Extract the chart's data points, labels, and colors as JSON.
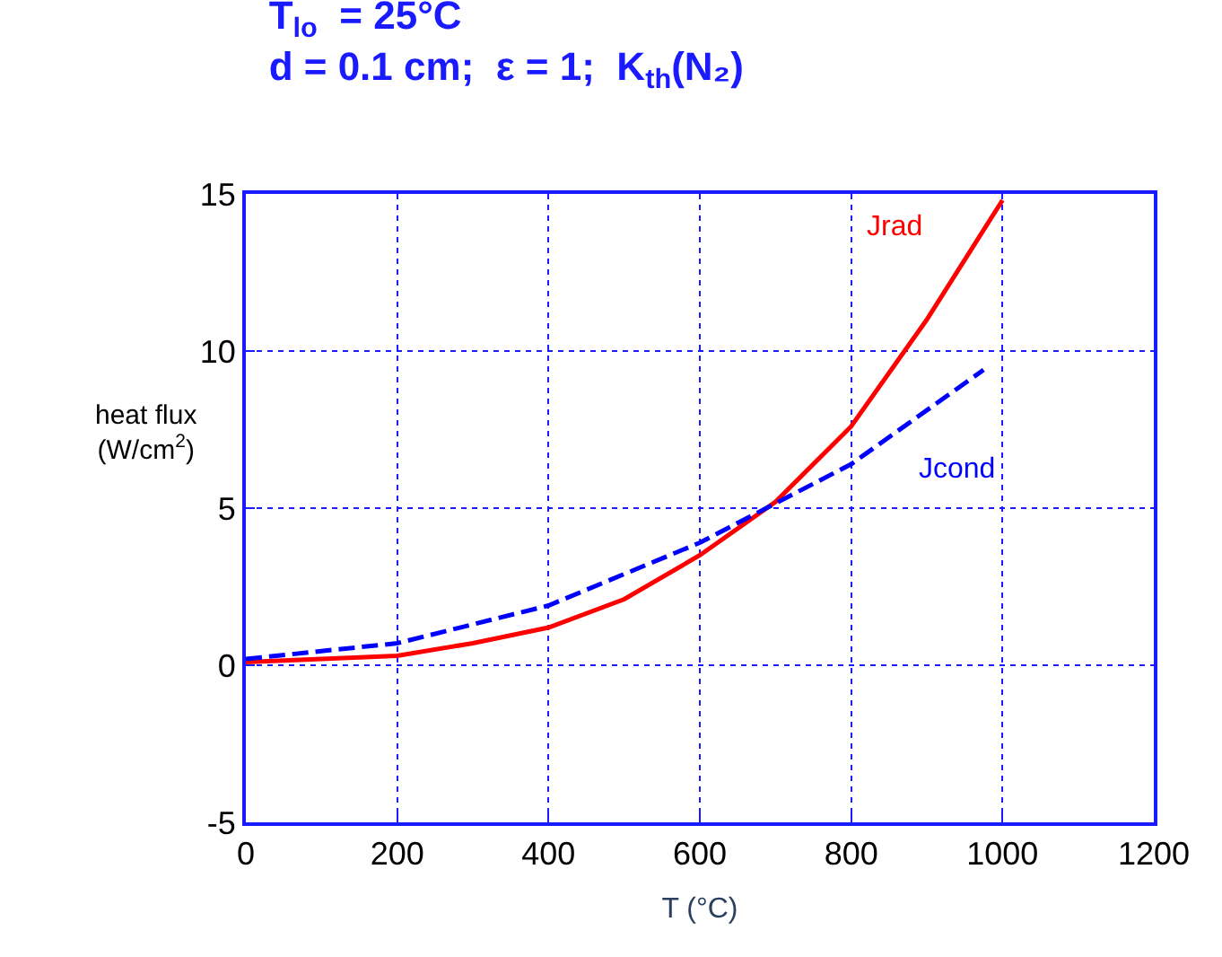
{
  "chart_data": {
    "type": "line",
    "title": "T$_{lo}$  = 25°C",
    "subtitle": "d = 0.1 cm;  ε = 1;  K$_{th}$(N₂)",
    "xlabel": "T (°C)",
    "ylabel": "heat flux (W/cm$^{2}$)",
    "xlim": [
      0,
      1200
    ],
    "xticks": [
      0,
      200,
      400,
      600,
      800,
      1000,
      1200
    ],
    "ylim": [
      -5,
      15
    ],
    "yticks": [
      -5,
      0,
      5,
      10,
      15
    ],
    "grid": true,
    "legend": false,
    "series": [
      {
        "name": "Jrad",
        "color": "#ff0000",
        "line_style": "solid",
        "x": [
          0,
          100,
          200,
          300,
          400,
          500,
          600,
          700,
          800,
          900,
          1000
        ],
        "values": [
          0.1,
          0.2,
          0.3,
          0.7,
          1.2,
          2.1,
          3.5,
          5.2,
          7.6,
          11.0,
          14.8
        ]
      },
      {
        "name": "Jcond",
        "color": "#0000ff",
        "line_style": "dashed",
        "x": [
          0,
          200,
          400,
          600,
          800,
          975
        ],
        "values": [
          0.2,
          0.7,
          1.9,
          3.9,
          6.4,
          9.4
        ]
      }
    ]
  }
}
